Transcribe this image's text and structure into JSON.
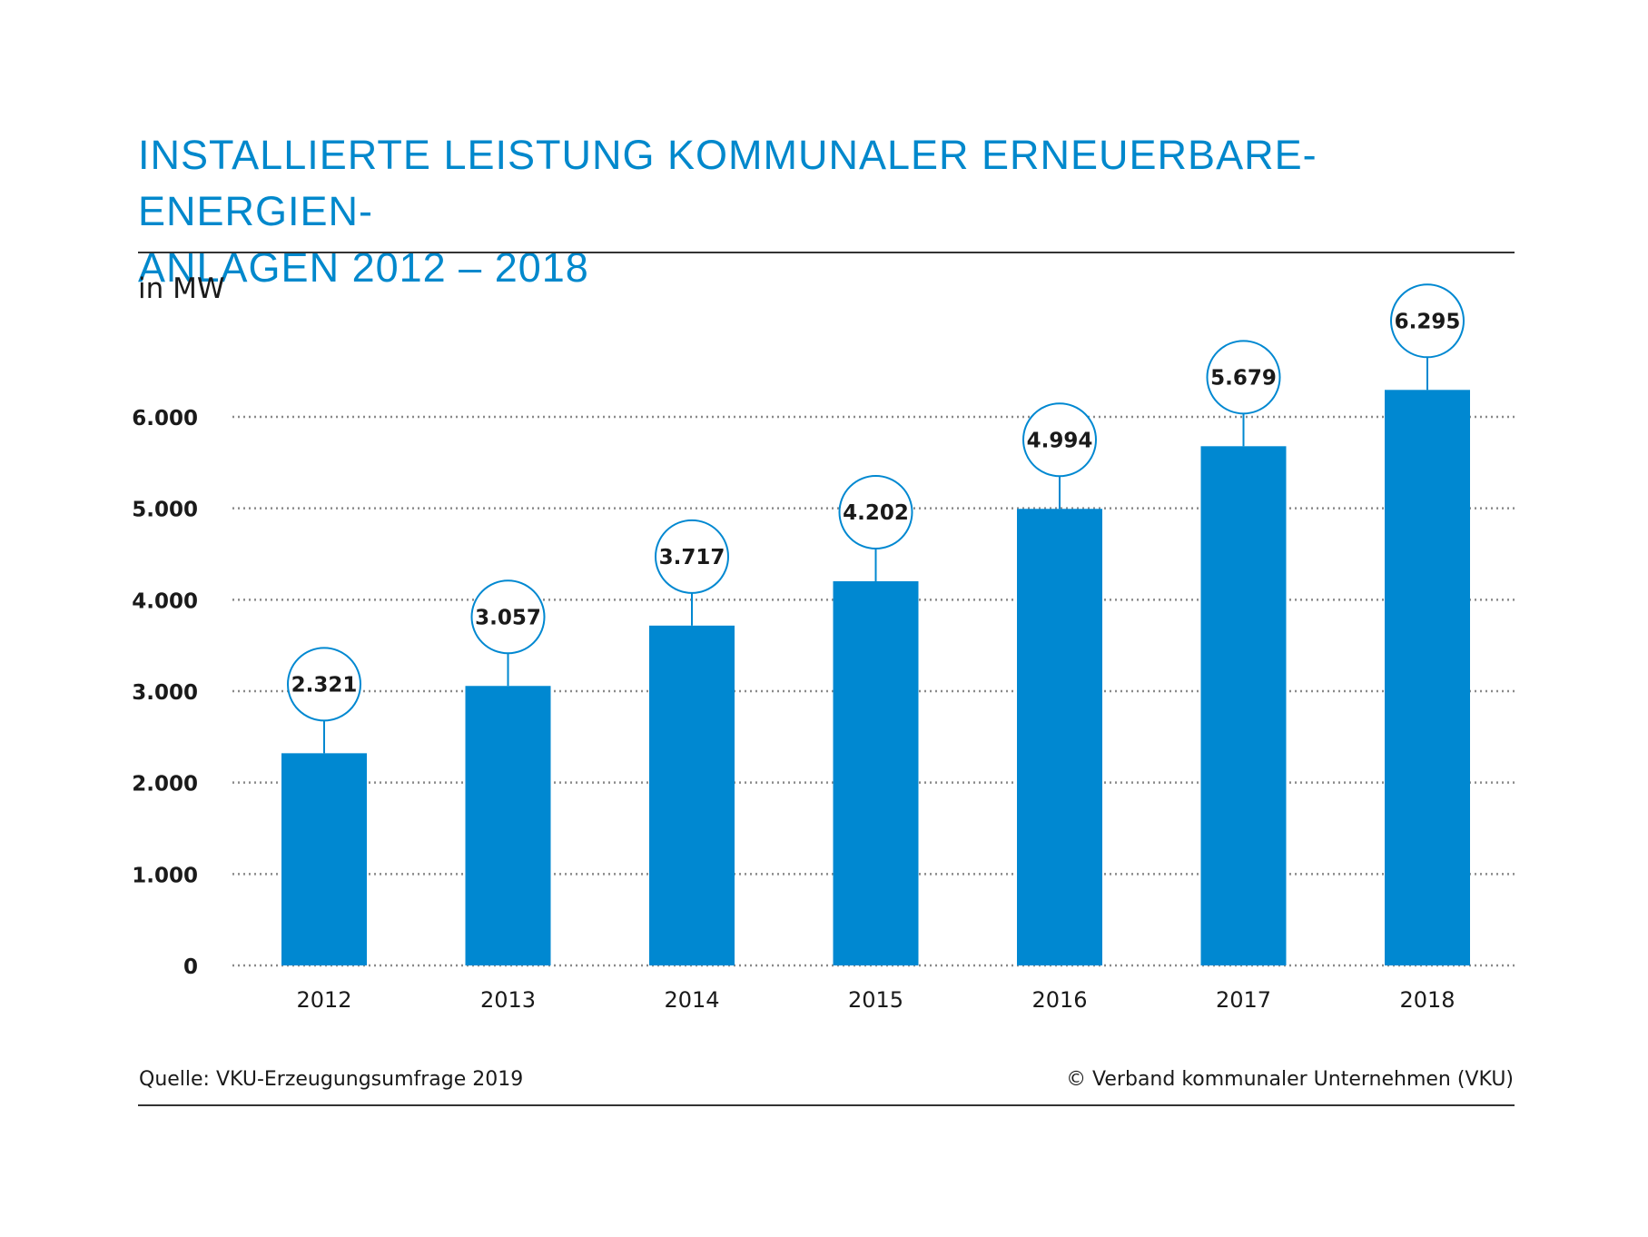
{
  "title_lines": [
    "INSTALLIERTE LEISTUNG KOMMUNALER ERNEUERBARE-ENERGIEN-",
    "ANLAGEN 2012 – 2018"
  ],
  "unit_label": "in MW",
  "source": "Quelle: VKU-Erzeugungsumfrage 2019",
  "copyright": "© Verband kommunaler Unternehmen (VKU)",
  "colors": {
    "bar": "#0088d1",
    "title": "#0088cc",
    "callout_stroke": "#0088d1",
    "grid": "#8a8a8a"
  },
  "chart_data": {
    "type": "bar",
    "title": "INSTALLIERTE LEISTUNG KOMMUNALER ERNEUERBARE-ENERGIEN-ANLAGEN 2012 – 2018",
    "ylabel": "in MW",
    "xlabel": "",
    "categories": [
      "2012",
      "2013",
      "2014",
      "2015",
      "2016",
      "2017",
      "2018"
    ],
    "values": [
      2321,
      3057,
      3717,
      4202,
      4994,
      5679,
      6295
    ],
    "value_labels": [
      "2.321",
      "3.057",
      "3.717",
      "4.202",
      "4.994",
      "5.679",
      "6.295"
    ],
    "ylim": [
      0,
      6000
    ],
    "yticks": [
      0,
      1000,
      2000,
      3000,
      4000,
      5000,
      6000
    ],
    "ytick_labels": [
      "0",
      "1.000",
      "2.000",
      "3.000",
      "4.000",
      "5.000",
      "6.000"
    ],
    "grid": "horizontal dotted",
    "legend": "none"
  }
}
